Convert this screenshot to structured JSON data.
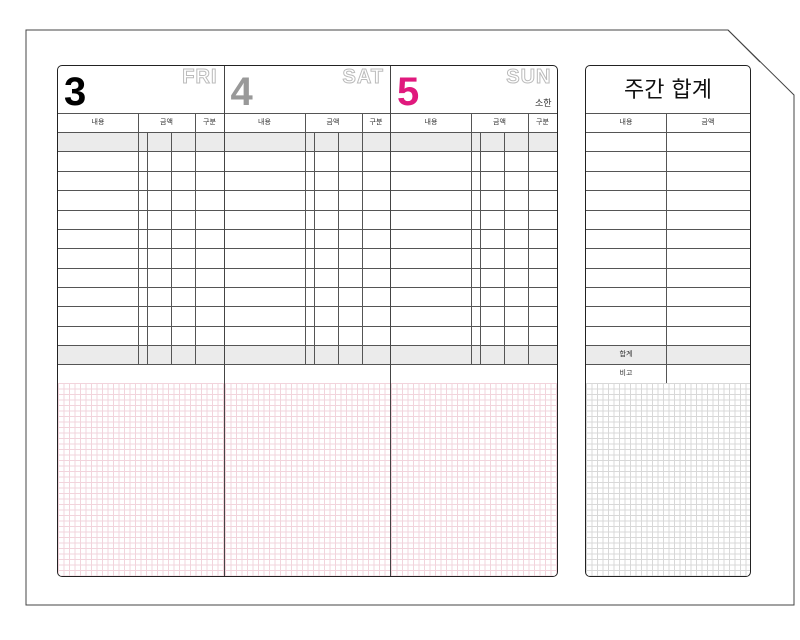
{
  "days": [
    {
      "number": "3",
      "weekday": "FRI",
      "color": "#000000",
      "holiday": ""
    },
    {
      "number": "4",
      "weekday": "SAT",
      "color": "#999999",
      "holiday": ""
    },
    {
      "number": "5",
      "weekday": "SUN",
      "color": "#e0197d",
      "holiday": "소한"
    }
  ],
  "columns": {
    "content": "내용",
    "amount": "금액",
    "category": "구분"
  },
  "weekly": {
    "title": "주간 합계",
    "content": "내용",
    "amount": "금액",
    "total": "합계",
    "note": "비고"
  },
  "colors": {
    "grid_day": "#f2d4dc",
    "grid_week": "#d8d8d8",
    "gray_row": "#ebebeb"
  }
}
